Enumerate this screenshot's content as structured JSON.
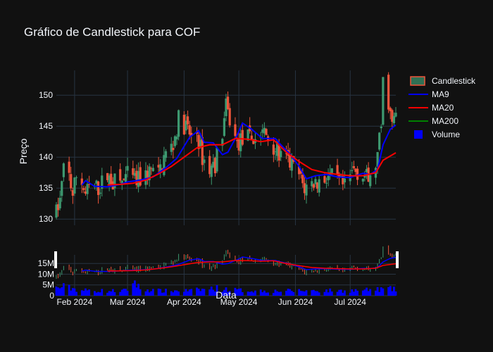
{
  "chart_data": {
    "type": "candlestick",
    "title": "Gráfico de Candlestick para COF",
    "xlabel": "Data",
    "ylabel": "Preço",
    "x_ticks": [
      "Feb 2024",
      "Mar 2024",
      "Apr 2024",
      "May 2024",
      "Jun 2024",
      "Jul 2024"
    ],
    "x_range": [
      "2024-01-22",
      "2024-07-26"
    ],
    "price_ylim": [
      129,
      154
    ],
    "price_y_ticks": [
      130,
      135,
      140,
      145,
      150
    ],
    "volume_y_ticks": [
      "0",
      "5M",
      "10M",
      "15M"
    ],
    "volume_ylim": [
      0,
      19000000
    ],
    "legend": [
      {
        "label": "Candlestick",
        "color": "#ef553b",
        "kind": "candle"
      },
      {
        "label": "MA9",
        "color": "#0000ff",
        "kind": "line"
      },
      {
        "label": "MA20",
        "color": "#ff0000",
        "kind": "line"
      },
      {
        "label": "MA200",
        "color": "#008000",
        "kind": "line"
      },
      {
        "label": "Volume",
        "color": "#0000ff",
        "kind": "bar"
      }
    ],
    "series": [
      {
        "name": "Candlestick",
        "increasing_color": "#3d9970",
        "decreasing_color": "#ef553b",
        "anchors": [
          [
            "2024-01-22",
            131
          ],
          [
            "2024-01-24",
            133
          ],
          [
            "2024-01-26",
            138
          ],
          [
            "2024-01-29",
            137
          ],
          [
            "2024-01-31",
            134
          ],
          [
            "2024-02-02",
            137
          ],
          [
            "2024-02-05",
            136
          ],
          [
            "2024-02-07",
            134
          ],
          [
            "2024-02-09",
            135
          ],
          [
            "2024-02-14",
            135
          ],
          [
            "2024-02-19",
            137
          ],
          [
            "2024-02-22",
            136
          ],
          [
            "2024-02-27",
            136
          ],
          [
            "2024-03-01",
            137
          ],
          [
            "2024-03-06",
            136
          ],
          [
            "2024-03-11",
            137
          ],
          [
            "2024-03-14",
            138
          ],
          [
            "2024-03-18",
            137
          ],
          [
            "2024-03-21",
            140
          ],
          [
            "2024-03-26",
            142
          ],
          [
            "2024-03-29",
            146
          ],
          [
            "2024-04-02",
            145
          ],
          [
            "2024-04-05",
            143
          ],
          [
            "2024-04-08",
            144
          ],
          [
            "2024-04-11",
            140
          ],
          [
            "2024-04-15",
            138
          ],
          [
            "2024-04-18",
            139
          ],
          [
            "2024-04-22",
            144
          ],
          [
            "2024-04-24",
            148
          ],
          [
            "2024-04-26",
            146
          ],
          [
            "2024-04-30",
            142
          ],
          [
            "2024-05-03",
            143
          ],
          [
            "2024-05-07",
            143
          ],
          [
            "2024-05-10",
            143
          ],
          [
            "2024-05-15",
            144
          ],
          [
            "2024-05-20",
            142
          ],
          [
            "2024-05-24",
            140
          ],
          [
            "2024-05-29",
            139
          ],
          [
            "2024-06-03",
            137
          ],
          [
            "2024-06-06",
            135
          ],
          [
            "2024-06-11",
            136
          ],
          [
            "2024-06-14",
            136
          ],
          [
            "2024-06-19",
            137
          ],
          [
            "2024-06-24",
            136
          ],
          [
            "2024-06-28",
            135
          ],
          [
            "2024-07-03",
            138
          ],
          [
            "2024-07-09",
            137
          ],
          [
            "2024-07-12",
            136
          ],
          [
            "2024-07-16",
            140
          ],
          [
            "2024-07-18",
            145
          ],
          [
            "2024-07-19",
            152
          ],
          [
            "2024-07-22",
            149
          ],
          [
            "2024-07-24",
            145
          ],
          [
            "2024-07-26",
            147
          ]
        ]
      },
      {
        "name": "MA9",
        "color": "#0000ff",
        "points": [
          [
            "2024-02-05",
            135.5
          ],
          [
            "2024-02-07",
            136.2
          ],
          [
            "2024-02-12",
            135.3
          ],
          [
            "2024-02-19",
            135.2
          ],
          [
            "2024-02-26",
            135.6
          ],
          [
            "2024-03-01",
            136.0
          ],
          [
            "2024-03-08",
            136.3
          ],
          [
            "2024-03-15",
            136.8
          ],
          [
            "2024-03-22",
            138.3
          ],
          [
            "2024-03-28",
            139.8
          ],
          [
            "2024-04-04",
            143.2
          ],
          [
            "2024-04-09",
            144.3
          ],
          [
            "2024-04-12",
            142.4
          ],
          [
            "2024-04-17",
            142.3
          ],
          [
            "2024-04-22",
            140.4
          ],
          [
            "2024-04-25",
            140.8
          ],
          [
            "2024-04-30",
            143.5
          ],
          [
            "2024-05-03",
            145.5
          ],
          [
            "2024-05-08",
            144.5
          ],
          [
            "2024-05-14",
            143.0
          ],
          [
            "2024-05-21",
            143.0
          ],
          [
            "2024-05-24",
            142.0
          ],
          [
            "2024-05-29",
            140.5
          ],
          [
            "2024-06-03",
            138.5
          ],
          [
            "2024-06-07",
            136.5
          ],
          [
            "2024-06-12",
            137.0
          ],
          [
            "2024-06-18",
            137.2
          ],
          [
            "2024-06-24",
            136.8
          ],
          [
            "2024-07-01",
            136.7
          ],
          [
            "2024-07-08",
            137.4
          ],
          [
            "2024-07-12",
            137.2
          ],
          [
            "2024-07-16",
            138.0
          ],
          [
            "2024-07-19",
            142.0
          ],
          [
            "2024-07-23",
            144.5
          ],
          [
            "2024-07-26",
            145.2
          ]
        ]
      },
      {
        "name": "MA20",
        "color": "#ff0000",
        "points": [
          [
            "2024-02-19",
            135.5
          ],
          [
            "2024-02-26",
            135.6
          ],
          [
            "2024-03-04",
            135.8
          ],
          [
            "2024-03-11",
            136.3
          ],
          [
            "2024-03-18",
            137.3
          ],
          [
            "2024-03-25",
            138.5
          ],
          [
            "2024-04-01",
            140.0
          ],
          [
            "2024-04-08",
            141.5
          ],
          [
            "2024-04-15",
            142.0
          ],
          [
            "2024-04-22",
            142.0
          ],
          [
            "2024-04-29",
            143.0
          ],
          [
            "2024-05-06",
            142.9
          ],
          [
            "2024-05-13",
            142.5
          ],
          [
            "2024-05-20",
            142.8
          ],
          [
            "2024-05-27",
            140.8
          ],
          [
            "2024-06-03",
            139.3
          ],
          [
            "2024-06-10",
            138.0
          ],
          [
            "2024-06-17",
            137.5
          ],
          [
            "2024-06-24",
            137.2
          ],
          [
            "2024-07-01",
            137.0
          ],
          [
            "2024-07-08",
            137.0
          ],
          [
            "2024-07-15",
            137.5
          ],
          [
            "2024-07-19",
            139.5
          ],
          [
            "2024-07-26",
            140.7
          ]
        ]
      },
      {
        "name": "MA200",
        "color": "#008000",
        "points": []
      },
      {
        "name": "Volume",
        "color": "#0000ff",
        "anchors": [
          [
            "2024-01-22",
            3500000
          ],
          [
            "2024-01-26",
            4200000
          ],
          [
            "2024-02-05",
            2500000
          ],
          [
            "2024-02-20",
            2200000
          ],
          [
            "2024-03-01",
            2400000
          ],
          [
            "2024-03-04",
            7500000
          ],
          [
            "2024-03-08",
            3000000
          ],
          [
            "2024-03-20",
            2200000
          ],
          [
            "2024-04-05",
            2400000
          ],
          [
            "2024-04-19",
            3500000
          ],
          [
            "2024-05-01",
            2500000
          ],
          [
            "2024-05-20",
            2200000
          ],
          [
            "2024-06-10",
            2400000
          ],
          [
            "2024-06-28",
            2300000
          ],
          [
            "2024-07-10",
            2600000
          ],
          [
            "2024-07-22",
            3200000
          ],
          [
            "2024-07-26",
            2800000
          ]
        ]
      }
    ]
  }
}
